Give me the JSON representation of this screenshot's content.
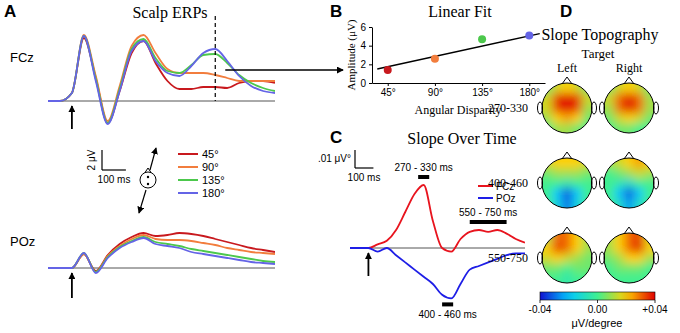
{
  "chart_data": [
    {
      "type": "line",
      "panel": "A",
      "title": "Scalp ERPs",
      "label": "FCz",
      "tick_labels": false,
      "x": [
        -100,
        -50,
        0,
        50,
        100,
        150,
        200,
        250,
        300,
        350,
        400,
        450,
        500,
        550,
        600,
        650,
        700,
        750,
        800,
        850
      ],
      "xlim": [
        -100,
        850
      ],
      "ylim": [
        -3.5,
        7.5
      ],
      "measure_time": 600,
      "scalebar": {
        "x": 100,
        "x_label": "100 ms",
        "y": 2,
        "y_label": "2 μV"
      },
      "series": [
        {
          "name": "45°",
          "color": "#c8191e",
          "values": [
            0,
            0,
            0.8,
            6.3,
            2.3,
            -2.2,
            1,
            4.8,
            6,
            3.8,
            2,
            1.2,
            1.2,
            1.4,
            1.4,
            1.3,
            1.8,
            2,
            2,
            1.8
          ]
        },
        {
          "name": "90°",
          "color": "#f27d3d",
          "values": [
            0,
            0,
            0.8,
            6.6,
            2.5,
            -2,
            1.5,
            5.5,
            6.6,
            4.8,
            3.2,
            2.8,
            2.8,
            2.8,
            2.6,
            2.3,
            2,
            2,
            2,
            2
          ]
        },
        {
          "name": "135°",
          "color": "#4cc84c",
          "values": [
            0,
            0,
            0.8,
            6.5,
            2.2,
            -2.2,
            1.2,
            5.2,
            6.2,
            4.3,
            3,
            2.8,
            3.6,
            4.6,
            4.7,
            3.8,
            2.6,
            1.8,
            1.3,
            1
          ]
        },
        {
          "name": "180°",
          "color": "#6464e6",
          "values": [
            0,
            0,
            0.8,
            6.5,
            2,
            -2.3,
            1,
            5,
            6,
            4,
            2.8,
            2.5,
            3.5,
            4.8,
            5.2,
            4,
            2.5,
            1.5,
            1,
            0.8
          ]
        }
      ]
    },
    {
      "type": "line",
      "label": "POz",
      "tick_labels": false,
      "x": [
        -100,
        -50,
        0,
        50,
        100,
        150,
        200,
        250,
        300,
        350,
        400,
        450,
        500,
        550,
        600,
        650,
        700,
        750,
        800,
        850
      ],
      "xlim": [
        -100,
        850
      ],
      "ylim": [
        -1.5,
        4.5
      ],
      "series": [
        {
          "color": "#c8191e",
          "values": [
            0,
            0,
            0,
            1.4,
            -0.3,
            1.3,
            2.4,
            3.1,
            3.5,
            3.2,
            3.3,
            3.5,
            3.4,
            3.2,
            2.9,
            2.6,
            2.3,
            2,
            1.8,
            1.6
          ]
        },
        {
          "color": "#f27d3d",
          "values": [
            0,
            0,
            0,
            1.4,
            -0.4,
            1.2,
            2.2,
            2.9,
            3.3,
            2.9,
            2.8,
            2.8,
            2.7,
            2.5,
            2.3,
            2,
            1.8,
            1.6,
            1.5,
            1.4
          ]
        },
        {
          "color": "#4cc84c",
          "values": [
            0,
            0,
            0,
            1.5,
            -0.4,
            1.1,
            2.1,
            2.7,
            3.1,
            2.6,
            2.4,
            2.2,
            1.9,
            1.7,
            1.5,
            1.3,
            1.1,
            0.9,
            0.7,
            0.6
          ]
        },
        {
          "color": "#6464e6",
          "values": [
            0,
            0,
            0,
            1.5,
            -0.5,
            1,
            2,
            2.6,
            3,
            2.4,
            2.2,
            2,
            1.6,
            1.4,
            1.2,
            1,
            0.8,
            0.6,
            0.5,
            0.4
          ]
        }
      ]
    },
    {
      "type": "scatter",
      "panel": "B",
      "title": "Linear Fit",
      "xlabel": "Angular Disparity",
      "ylabel": "Amplitude (μV)",
      "x": [
        45,
        90,
        135,
        180
      ],
      "values": [
        1.4,
        2.6,
        4.7,
        5.1
      ],
      "colors": [
        "#c8191e",
        "#f27d3d",
        "#4cc84c",
        "#6464e6"
      ],
      "xlim": [
        30,
        195
      ],
      "ylim": [
        0,
        6
      ],
      "xticks": [
        {
          "value": 45,
          "label": "45°"
        },
        {
          "value": 90,
          "label": "90°"
        },
        {
          "value": 135,
          "label": "135°"
        },
        {
          "value": 180,
          "label": "180°"
        }
      ],
      "yticks": [
        0,
        2,
        4,
        6
      ],
      "fit": {
        "x": [
          35,
          190
        ],
        "values": [
          1.5,
          5.3
        ]
      }
    },
    {
      "type": "line",
      "panel": "C",
      "title": "Slope Over Time",
      "tick_labels": false,
      "x": [
        -100,
        -50,
        0,
        50,
        100,
        150,
        200,
        250,
        300,
        350,
        400,
        450,
        500,
        550,
        600,
        650,
        700,
        750,
        800,
        850
      ],
      "xlim": [
        -100,
        850
      ],
      "ylim": [
        -0.04,
        0.045
      ],
      "scalebar": {
        "x": 100,
        "x_label": "100 ms",
        "y": 0.01,
        "y_label": ".01 μV°"
      },
      "series": [
        {
          "name": "FCz",
          "color": "#e8141e",
          "values": [
            0,
            0,
            0,
            0.002,
            0.004,
            0.01,
            0.02,
            0.03,
            0.035,
            0.015,
            0,
            -0.002,
            0.005,
            0.009,
            0.01,
            0.009,
            0.01,
            0.008,
            0.005,
            0.003
          ],
          "windows": [
            {
              "start": 270,
              "end": 330,
              "label": "270 - 330 ms"
            },
            {
              "start": 550,
              "end": 750,
              "label": "550 - 750 ms"
            }
          ]
        },
        {
          "name": "POz",
          "color": "#1e1ee6",
          "values": [
            0,
            0,
            0,
            -0.002,
            0,
            -0.004,
            -0.008,
            -0.012,
            -0.016,
            -0.02,
            -0.026,
            -0.028,
            -0.02,
            -0.012,
            -0.01,
            -0.008,
            -0.006,
            -0.004,
            -0.003,
            -0.003
          ],
          "windows": [
            {
              "start": 400,
              "end": 460,
              "label": "400 - 460 ms"
            }
          ]
        }
      ]
    },
    {
      "type": "heatmap",
      "panel": "D",
      "title": "Slope Topography",
      "column_title": "Target",
      "columns": [
        "Left",
        "Right"
      ],
      "rows": [
        "270-330",
        "400-460",
        "550-750"
      ],
      "maps": [
        [
          [
            [
              0.005,
              0.015,
              0.02,
              0.015,
              0.005
            ],
            [
              0.015,
              0.035,
              0.04,
              0.035,
              0.015
            ],
            [
              0.015,
              0.035,
              0.04,
              0.035,
              0.01
            ],
            [
              0.01,
              0.02,
              0.025,
              0.02,
              0.005
            ],
            [
              0,
              0.01,
              0.01,
              0.005,
              0
            ]
          ],
          [
            [
              0.005,
              0.015,
              0.02,
              0.015,
              0.005
            ],
            [
              0.015,
              0.03,
              0.04,
              0.03,
              0.01
            ],
            [
              0.01,
              0.03,
              0.04,
              0.03,
              0.01
            ],
            [
              0.005,
              0.015,
              0.02,
              0.015,
              0.005
            ],
            [
              0,
              0.005,
              0.005,
              0,
              0
            ]
          ]
        ],
        [
          [
            [
              0.015,
              0.02,
              0.02,
              0.02,
              0.015
            ],
            [
              0.005,
              0.01,
              0.01,
              0.01,
              0.005
            ],
            [
              0,
              0,
              -0.005,
              0,
              0
            ],
            [
              0,
              -0.02,
              -0.035,
              -0.02,
              0
            ],
            [
              0,
              -0.015,
              -0.03,
              -0.015,
              0
            ]
          ],
          [
            [
              0.01,
              0.015,
              0.02,
              0.025,
              0.02
            ],
            [
              0,
              0.005,
              0.01,
              0.015,
              0.01
            ],
            [
              0,
              -0.005,
              -0.01,
              0,
              0
            ],
            [
              0,
              -0.02,
              -0.035,
              -0.02,
              0
            ],
            [
              0,
              -0.01,
              -0.025,
              -0.01,
              0
            ]
          ]
        ],
        [
          [
            [
              0.01,
              0.03,
              0.03,
              0.02,
              0.01
            ],
            [
              0.02,
              0.035,
              0.03,
              0.02,
              0.01
            ],
            [
              0.015,
              0.02,
              0.015,
              0.01,
              0.005
            ],
            [
              0.005,
              0.005,
              0,
              0.005,
              0.005
            ],
            [
              0,
              0,
              -0.005,
              0,
              0
            ]
          ],
          [
            [
              0.01,
              0.02,
              0.03,
              0.035,
              0.015
            ],
            [
              0.01,
              0.02,
              0.03,
              0.04,
              0.02
            ],
            [
              0.005,
              0.01,
              0.02,
              0.02,
              0.01
            ],
            [
              0,
              0.005,
              0.005,
              0.005,
              0
            ],
            [
              0,
              0,
              0,
              0,
              0
            ]
          ]
        ]
      ],
      "colorbar": {
        "lim": [
          -0.04,
          0.04
        ],
        "ticks": [
          {
            "value": -0.04,
            "label": "-0.04"
          },
          {
            "value": 0,
            "label": "0.00"
          },
          {
            "value": 0.04,
            "label": "+0.04"
          }
        ],
        "label": "μV/degree"
      }
    }
  ]
}
